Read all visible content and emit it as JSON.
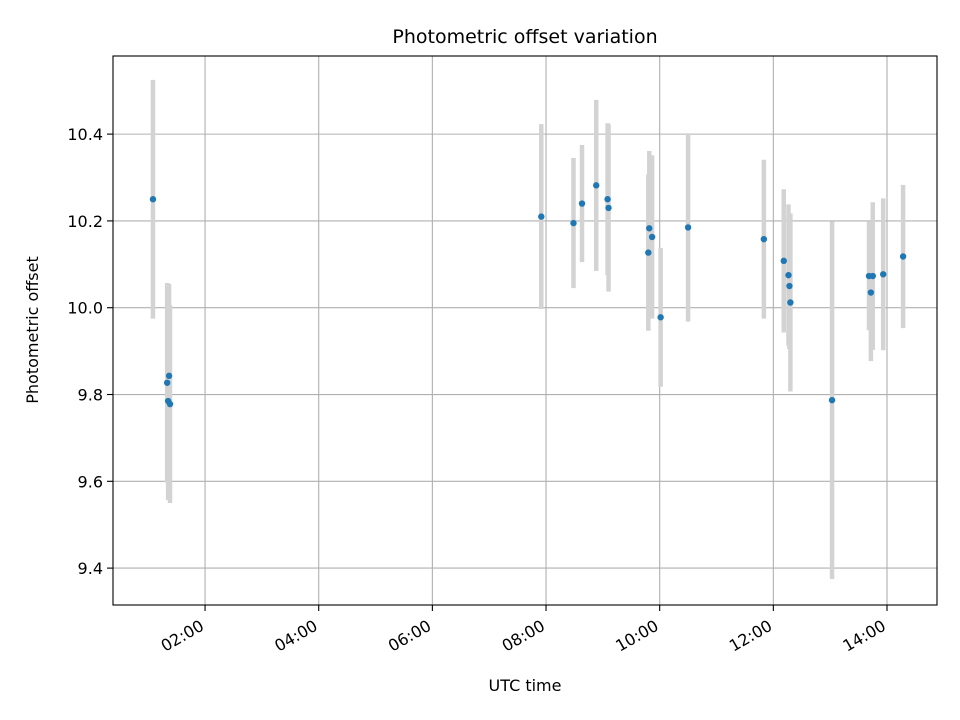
{
  "chart_data": {
    "type": "scatter",
    "title": "Photometric offset variation",
    "xlabel": "UTC time",
    "ylabel": "Photometric offset",
    "x_ticks": [
      "02:00",
      "04:00",
      "06:00",
      "08:00",
      "10:00",
      "12:00",
      "14:00"
    ],
    "x_tick_hours": [
      2,
      4,
      6,
      8,
      10,
      12,
      14
    ],
    "xlim_hours": [
      0.38,
      14.88
    ],
    "y_ticks": [
      "9.4",
      "9.6",
      "9.8",
      "10.0",
      "10.2",
      "10.4"
    ],
    "y_tick_values": [
      9.4,
      9.6,
      9.8,
      10.0,
      10.2,
      10.4
    ],
    "ylim": [
      9.315,
      10.58
    ],
    "grid": true,
    "colors": {
      "point": "#1f77b4",
      "errorbar": "#d3d3d3",
      "grid": "#b0b0b0"
    },
    "points": [
      {
        "t": "01:05",
        "y": 10.25,
        "err": 0.275
      },
      {
        "t": "01:20",
        "y": 9.827,
        "err": 0.23
      },
      {
        "t": "01:21",
        "y": 9.785,
        "err": 0.228
      },
      {
        "t": "01:22",
        "y": 9.843,
        "err": 0.212
      },
      {
        "t": "01:23",
        "y": 9.778,
        "err": 0.228
      },
      {
        "t": "07:55",
        "y": 10.21,
        "err": 0.213
      },
      {
        "t": "08:29",
        "y": 10.195,
        "err": 0.15
      },
      {
        "t": "08:38",
        "y": 10.24,
        "err": 0.135
      },
      {
        "t": "08:53",
        "y": 10.282,
        "err": 0.197
      },
      {
        "t": "09:05",
        "y": 10.25,
        "err": 0.175
      },
      {
        "t": "09:06",
        "y": 10.23,
        "err": 0.193
      },
      {
        "t": "09:48",
        "y": 10.127,
        "err": 0.18
      },
      {
        "t": "09:49",
        "y": 10.183,
        "err": 0.178
      },
      {
        "t": "09:52",
        "y": 10.163,
        "err": 0.188
      },
      {
        "t": "10:01",
        "y": 9.978,
        "err": 0.16
      },
      {
        "t": "10:30",
        "y": 10.185,
        "err": 0.217
      },
      {
        "t": "11:50",
        "y": 10.158,
        "err": 0.183
      },
      {
        "t": "12:11",
        "y": 10.108,
        "err": 0.165
      },
      {
        "t": "12:16",
        "y": 10.075,
        "err": 0.163
      },
      {
        "t": "12:17",
        "y": 10.05,
        "err": 0.145
      },
      {
        "t": "12:18",
        "y": 10.012,
        "err": 0.205
      },
      {
        "t": "13:02",
        "y": 9.787,
        "err": 0.412
      },
      {
        "t": "13:41",
        "y": 10.073,
        "err": 0.125
      },
      {
        "t": "13:43",
        "y": 10.035,
        "err": 0.158
      },
      {
        "t": "13:45",
        "y": 10.073,
        "err": 0.17
      },
      {
        "t": "13:56",
        "y": 10.077,
        "err": 0.175
      },
      {
        "t": "14:17",
        "y": 10.118,
        "err": 0.165
      }
    ]
  }
}
